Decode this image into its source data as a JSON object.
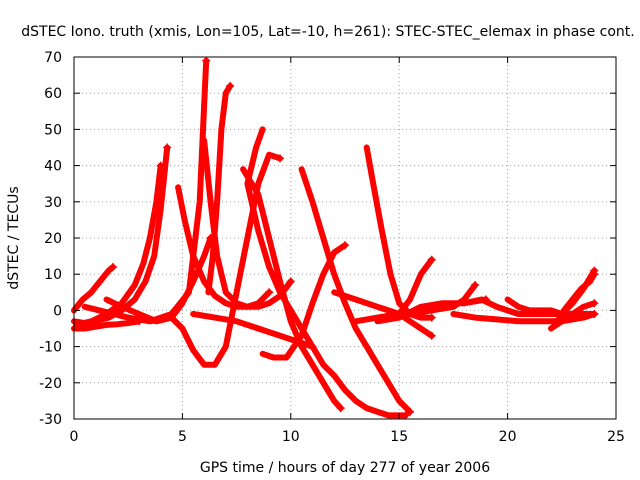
{
  "chart_data": {
    "type": "line",
    "title": "dSTEC Iono. truth (xmis, Lon=105, Lat=-10, h=261): STEC-STEC_elemax in phase cont.",
    "xlabel": "GPS time / hours of day 277 of year 2006",
    "ylabel": "dSTEC  / TECUs",
    "xlim": [
      0,
      25
    ],
    "ylim": [
      -30,
      70
    ],
    "xticks": [
      "0",
      "5",
      "10",
      "15",
      "20",
      "25"
    ],
    "yticks": [
      "-30",
      "-20",
      "-10",
      "0",
      "10",
      "20",
      "30",
      "40",
      "50",
      "60",
      "70"
    ],
    "grid": true,
    "marker": "plus",
    "color": "#ff0000",
    "series": [
      {
        "x": [
          0.0,
          0.4,
          0.8,
          1.2,
          1.6,
          1.8
        ],
        "y": [
          0,
          3,
          5,
          8,
          11,
          12
        ]
      },
      {
        "x": [
          0.0,
          0.5,
          1.0,
          1.5,
          2.0,
          2.5,
          3.0
        ],
        "y": [
          -5,
          -5,
          -4.5,
          -4,
          -3.8,
          -3.5,
          -3
        ]
      },
      {
        "x": [
          0.0,
          0.5,
          1.0,
          1.6,
          2.2,
          2.8,
          3.3,
          3.7,
          4.0,
          4.3
        ],
        "y": [
          -3,
          -3.5,
          -3,
          -2,
          0,
          3,
          8,
          15,
          28,
          45
        ]
      },
      {
        "x": [
          0.1,
          0.8,
          1.5,
          2.2,
          2.8,
          3.2,
          3.5,
          3.8,
          4.0
        ],
        "y": [
          -4,
          -3,
          -1,
          2,
          7,
          13,
          20,
          30,
          40
        ]
      },
      {
        "x": [
          1.5,
          2.2,
          3.0,
          3.8,
          4.5,
          5.0,
          5.5,
          6.0,
          6.3
        ],
        "y": [
          3,
          1,
          -1,
          -3,
          -2,
          2,
          8,
          15,
          20
        ]
      },
      {
        "x": [
          0.5,
          1.5,
          2.5,
          3.5,
          4.5,
          5.3,
          5.8,
          6.1
        ],
        "y": [
          1,
          -0.5,
          -2,
          -3,
          -1,
          5,
          30,
          69
        ]
      },
      {
        "x": [
          4.8,
          5.1,
          5.5,
          6.0,
          6.5,
          7.0,
          7.5,
          8.0,
          8.5,
          9.0
        ],
        "y": [
          34,
          25,
          15,
          8,
          4,
          2,
          1,
          1,
          2,
          5
        ]
      },
      {
        "x": [
          3.5,
          4.5,
          5.0,
          5.5,
          6.0,
          6.5,
          7.0,
          7.5,
          8.0,
          8.5,
          9.0,
          9.5
        ],
        "y": [
          -3,
          -2,
          -5,
          -11,
          -15,
          -15,
          -10,
          5,
          20,
          35,
          43,
          42
        ]
      },
      {
        "x": [
          6.2,
          6.4,
          6.6,
          6.8,
          7.0,
          7.2
        ],
        "y": [
          5,
          15,
          30,
          50,
          60,
          62
        ]
      },
      {
        "x": [
          6.0,
          6.3,
          6.6,
          7.0,
          7.5,
          8.0,
          8.5,
          9.0,
          9.5,
          10.0
        ],
        "y": [
          47,
          30,
          15,
          5,
          2,
          1,
          1,
          2,
          4,
          8
        ]
      },
      {
        "x": [
          7.8,
          8.1,
          8.5,
          9.0,
          9.5,
          10.0,
          10.5,
          11.0,
          11.5,
          12.0,
          12.3
        ],
        "y": [
          39,
          36,
          32,
          20,
          8,
          -3,
          -10,
          -15,
          -20,
          -25,
          -27
        ]
      },
      {
        "x": [
          8.7,
          8.4,
          8.0,
          8.5,
          9.0,
          9.5,
          10.0,
          10.5,
          11.0,
          11.5,
          12.0,
          12.5,
          13.0,
          13.5,
          14.0,
          14.5,
          15.0,
          15.3
        ],
        "y": [
          50,
          45,
          35,
          22,
          12,
          5,
          0,
          -5,
          -10,
          -15,
          -18,
          -22,
          -25,
          -27,
          -28,
          -29,
          -29,
          -29
        ]
      },
      {
        "x": [
          5.5,
          6.5,
          7.5,
          8.5,
          9.5,
          10.5,
          11.0
        ],
        "y": [
          -1,
          -2,
          -3,
          -5,
          -7,
          -9,
          -10
        ]
      },
      {
        "x": [
          8.7,
          9.2,
          9.8,
          10.5,
          11.0,
          11.5,
          12.0,
          12.5
        ],
        "y": [
          -12,
          -13,
          -13,
          -7,
          2,
          10,
          16,
          18
        ]
      },
      {
        "x": [
          10.5,
          11.0,
          11.5,
          12.0,
          12.5,
          13.0,
          13.5,
          14.0,
          14.5,
          15.0,
          15.5
        ],
        "y": [
          39,
          30,
          20,
          10,
          2,
          -5,
          -10,
          -15,
          -20,
          -25,
          -28
        ]
      },
      {
        "x": [
          12.0,
          13.0,
          14.0,
          15.0,
          15.5,
          16.0,
          16.5
        ],
        "y": [
          5,
          3,
          1,
          -1,
          -3,
          -5,
          -7
        ]
      },
      {
        "x": [
          13.5,
          13.8,
          14.2,
          14.6,
          15.0,
          15.5,
          16.0,
          16.5
        ],
        "y": [
          45,
          35,
          22,
          10,
          2,
          -1,
          -2,
          -2
        ]
      },
      {
        "x": [
          13.0,
          14.0,
          15.0,
          15.5,
          16.0,
          16.5
        ],
        "y": [
          -3,
          -2,
          -1,
          3,
          10,
          14
        ]
      },
      {
        "x": [
          14.5,
          15.5,
          16.5,
          17.5,
          18.0,
          18.5
        ],
        "y": [
          -2,
          -1,
          0,
          1,
          3,
          7
        ]
      },
      {
        "x": [
          14.0,
          15.0,
          16.0,
          17.0,
          18.0,
          19.0
        ],
        "y": [
          -3,
          -2,
          1,
          2,
          2,
          3
        ]
      },
      {
        "x": [
          17.5,
          18.5,
          19.5,
          20.5,
          21.5,
          22.5,
          23.5,
          24.0
        ],
        "y": [
          -1,
          -2,
          -2.5,
          -3,
          -3,
          -3,
          -2,
          -1
        ]
      },
      {
        "x": [
          18.0,
          18.8,
          19.5,
          20.0,
          20.5,
          21.0,
          22.0,
          23.0,
          24.0
        ],
        "y": [
          2,
          3,
          1,
          0,
          -1,
          -1,
          -1,
          -1,
          -1
        ]
      },
      {
        "x": [
          20.0,
          20.5,
          21.0,
          22.0,
          22.5,
          23.0,
          23.5,
          24.0
        ],
        "y": [
          3,
          1,
          0,
          0,
          -1,
          2,
          6,
          11
        ]
      },
      {
        "x": [
          22.3,
          22.6,
          23.0,
          23.4,
          23.8,
          24.0
        ],
        "y": [
          -3,
          0,
          3,
          6,
          8,
          10
        ]
      },
      {
        "x": [
          22.0,
          22.5,
          23.0,
          23.5,
          24.0
        ],
        "y": [
          -5,
          -3,
          -1,
          1,
          2
        ]
      }
    ]
  }
}
